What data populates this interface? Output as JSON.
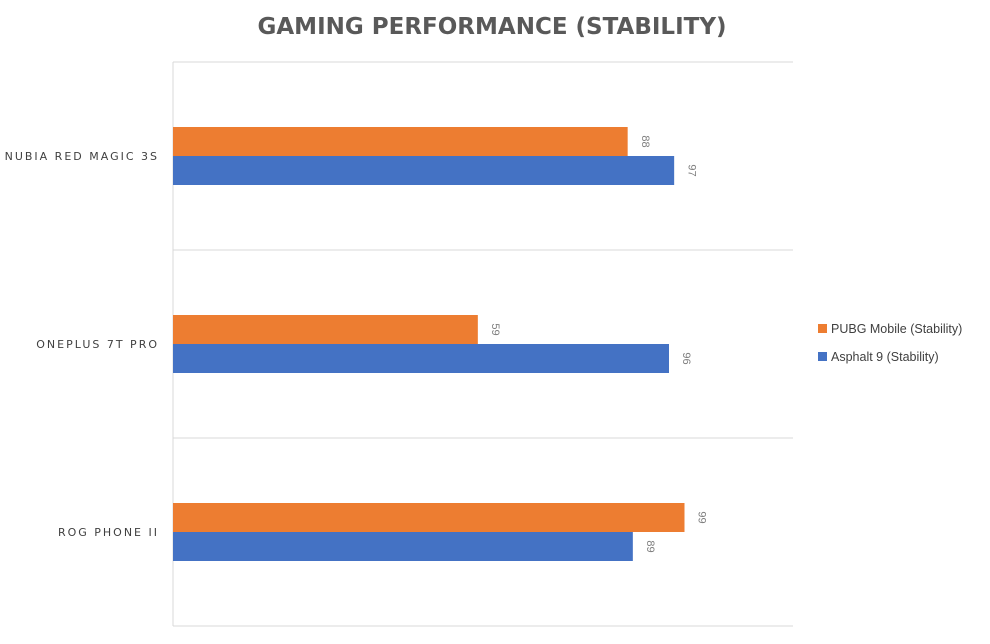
{
  "chart_data": {
    "type": "bar",
    "orientation": "horizontal",
    "title": "GAMING PERFORMANCE (STABILITY)",
    "categories": [
      "NUBIA RED MAGIC 3S",
      "ONEPLUS 7T PRO",
      "ROG PHONE II"
    ],
    "series": [
      {
        "name": "PUBG Mobile (Stability)",
        "color": "#ED7D31",
        "values": [
          88,
          59,
          99
        ]
      },
      {
        "name": "Asphalt 9 (Stability)",
        "color": "#4472C4",
        "values": [
          97,
          96,
          89
        ]
      }
    ],
    "xlim": [
      0,
      120
    ],
    "grid": true,
    "legend_position": "right",
    "data_labels": true
  }
}
